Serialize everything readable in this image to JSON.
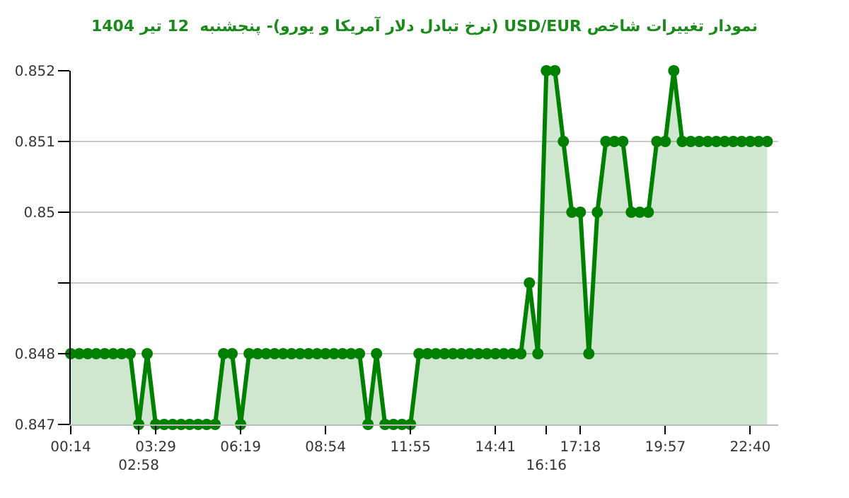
{
  "chart_data": {
    "type": "area",
    "title": "نمودار تغییرات شاخص USD/EUR (نرخ تبادل دلار آمریکا و یورو)- پنجشنبه  12 تیر 1404",
    "categories": [
      "00:14",
      null,
      null,
      null,
      null,
      null,
      null,
      null,
      "02:58",
      null,
      "03:29",
      null,
      null,
      null,
      null,
      null,
      null,
      null,
      null,
      null,
      "06:19",
      null,
      null,
      null,
      null,
      null,
      null,
      null,
      null,
      null,
      "08:54",
      null,
      null,
      null,
      null,
      null,
      null,
      null,
      null,
      null,
      "11:55",
      null,
      null,
      null,
      null,
      null,
      null,
      null,
      null,
      null,
      "14:41",
      null,
      null,
      null,
      null,
      null,
      "16:16",
      null,
      null,
      null,
      "17:18",
      null,
      null,
      null,
      null,
      null,
      null,
      null,
      null,
      null,
      "19:57",
      null,
      null,
      null,
      null,
      null,
      null,
      null,
      null,
      null,
      "22:40",
      null,
      null
    ],
    "series": [
      {
        "color": "#008000",
        "values": [
          0.848,
          0.848,
          0.848,
          0.848,
          0.848,
          0.848,
          0.848,
          0.848,
          0.847,
          0.848,
          0.847,
          0.847,
          0.847,
          0.847,
          0.847,
          0.847,
          0.847,
          0.847,
          0.848,
          0.848,
          0.847,
          0.848,
          0.848,
          0.848,
          0.848,
          0.848,
          0.848,
          0.848,
          0.848,
          0.848,
          0.848,
          0.848,
          0.848,
          0.848,
          0.848,
          0.847,
          0.848,
          0.847,
          0.847,
          0.847,
          0.847,
          0.848,
          0.848,
          0.848,
          0.848,
          0.848,
          0.848,
          0.848,
          0.848,
          0.848,
          0.848,
          0.848,
          0.848,
          0.848,
          0.849,
          0.848,
          0.852,
          0.852,
          0.851,
          0.85,
          0.85,
          0.848,
          0.85,
          0.851,
          0.851,
          0.851,
          0.85,
          0.85,
          0.85,
          0.851,
          0.851,
          0.852,
          0.851,
          0.851,
          0.851,
          0.851,
          0.851,
          0.851,
          0.851,
          0.851,
          0.851,
          0.851,
          0.851
        ]
      }
    ],
    "ylim": [
      0.847,
      0.852
    ],
    "yticks": [
      0.847,
      0.848,
      {
        "value": 0.849,
        "label": null
      },
      0.85,
      0.851,
      0.852
    ],
    "grid": "y",
    "marker": "circle",
    "line_style": "solid",
    "legend": false
  }
}
